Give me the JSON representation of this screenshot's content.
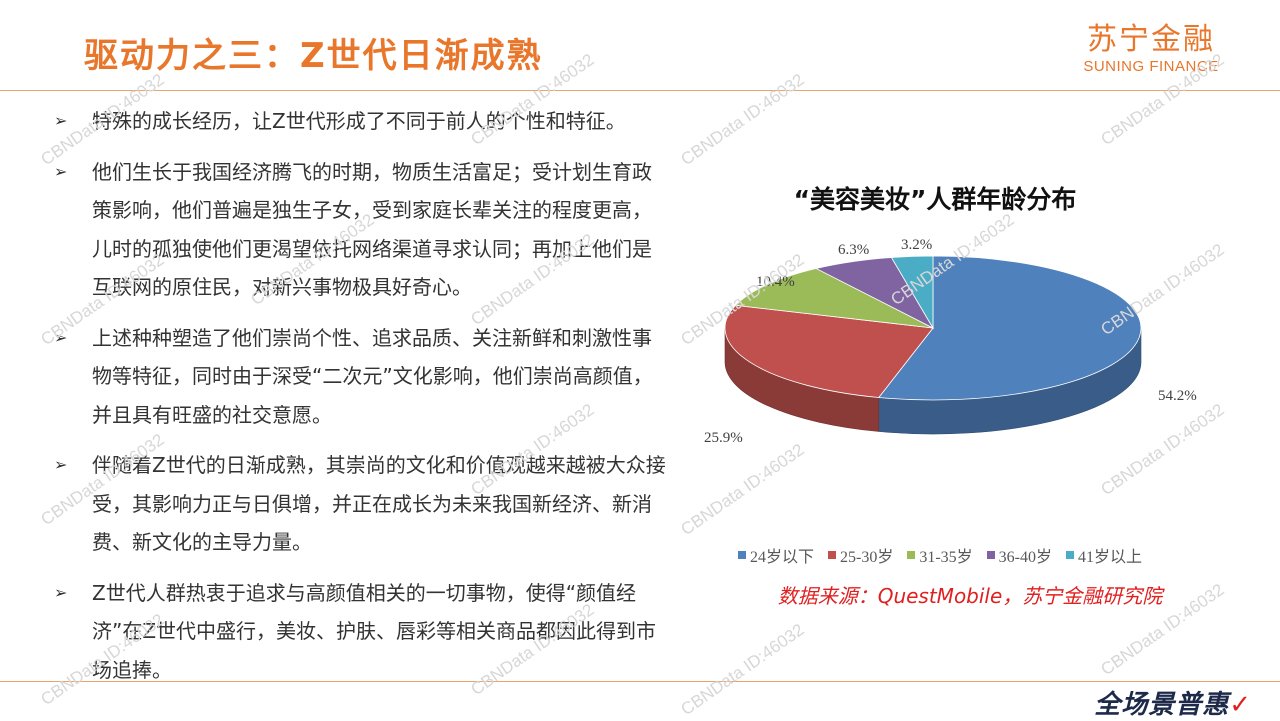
{
  "header": {
    "title": "驱动力之三：Z世代日渐成熟",
    "logo_cn": "苏宁金融",
    "logo_en": "SUNING FINANCE"
  },
  "bullets": [
    "特殊的成长经历，让Z世代形成了不同于前人的个性和特征。",
    "他们生长于我国经济腾飞的时期，物质生活富足；受计划生育政策影响，他们普遍是独生子女，受到家庭长辈关注的程度更高，儿时的孤独使他们更渴望依托网络渠道寻求认同；再加上他们是互联网的原住民，对新兴事物极具好奇心。",
    "上述种种塑造了他们崇尚个性、追求品质、关注新鲜和刺激性事物等特征，同时由于深受“二次元”文化影响，他们崇尚高颜值，并且具有旺盛的社交意愿。",
    "伴随着Z世代的日渐成熟，其崇尚的文化和价值观越来越被大众接受，其影响力正与日俱增，并正在成长为未来我国新经济、新消费、新文化的主导力量。",
    "Z世代人群热衷于追求与高颜值相关的一切事物，使得“颜值经济”在Z世代中盛行，美妆、护肤、唇彩等相关商品都因此得到市场追捧。"
  ],
  "bullet_marker": "➢",
  "chart_data": {
    "type": "pie",
    "title": "“美容美妆”人群年龄分布",
    "categories": [
      "24岁以下",
      "25-30岁",
      "31-35岁",
      "36-40岁",
      "41岁以上"
    ],
    "values": [
      54.2,
      25.9,
      10.4,
      6.3,
      3.2
    ],
    "labels": [
      "54.2%",
      "25.9%",
      "10.4%",
      "6.3%",
      "3.2%"
    ],
    "colors": [
      "#4F81BD",
      "#C0504D",
      "#9BBB59",
      "#8064A2",
      "#4BACC6"
    ],
    "style": "3d",
    "legend_position": "bottom"
  },
  "source": "数据来源：QuestMobile，苏宁金融研究院",
  "footer_logo": {
    "text": "全场景普惠",
    "check": "✓"
  },
  "watermark": "CBNData ID:46032"
}
